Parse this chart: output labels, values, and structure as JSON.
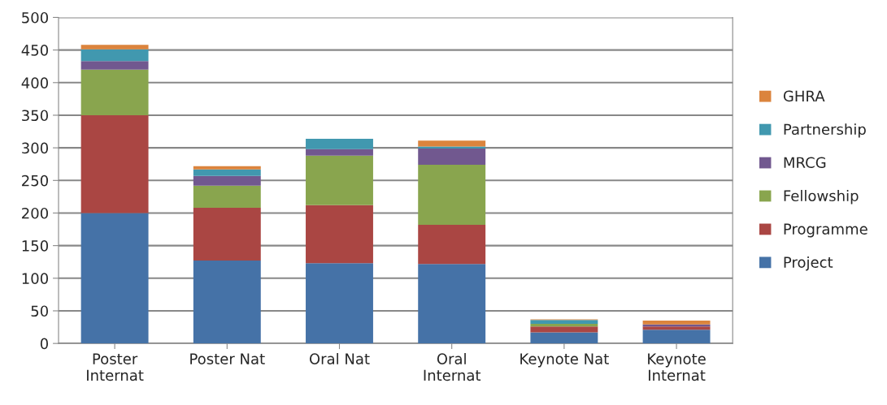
{
  "chart_data": {
    "type": "bar",
    "stacked": true,
    "categories": [
      "Poster\nInternat",
      "Poster Nat",
      "Oral Nat",
      "Oral\nInternat",
      "Keynote Nat",
      "Keynote\nInternat"
    ],
    "series": [
      {
        "name": "Project",
        "color": "#4572a7",
        "values": [
          200,
          127,
          123,
          122,
          17,
          21
        ]
      },
      {
        "name": "Programme",
        "color": "#aa4643",
        "values": [
          150,
          81,
          89,
          60,
          9,
          5
        ]
      },
      {
        "name": "Fellowship",
        "color": "#89a54e",
        "values": [
          70,
          34,
          76,
          92,
          4,
          0
        ]
      },
      {
        "name": "MRCG",
        "color": "#71588f",
        "values": [
          13,
          15,
          10,
          25,
          0,
          3
        ]
      },
      {
        "name": "Partnership",
        "color": "#4198af",
        "values": [
          18,
          10,
          16,
          3,
          6,
          0
        ]
      },
      {
        "name": "GHRA",
        "color": "#db843d",
        "values": [
          7,
          5,
          0,
          9,
          1,
          6
        ]
      }
    ],
    "ylim": [
      0,
      500
    ],
    "yticks": [
      0,
      50,
      100,
      150,
      200,
      250,
      300,
      350,
      400,
      450,
      500
    ],
    "grid": "y",
    "legend": "right"
  }
}
